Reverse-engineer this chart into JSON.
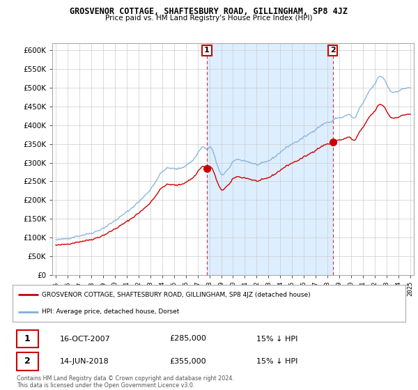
{
  "title": "GROSVENOR COTTAGE, SHAFTESBURY ROAD, GILLINGHAM, SP8 4JZ",
  "subtitle": "Price paid vs. HM Land Registry's House Price Index (HPI)",
  "ytick_values": [
    0,
    50000,
    100000,
    150000,
    200000,
    250000,
    300000,
    350000,
    400000,
    450000,
    500000,
    550000,
    600000
  ],
  "hpi_color": "#7fb0d8",
  "sold_color": "#cc0000",
  "shade_color": "#ddeeff",
  "marker1_date": 2007.79,
  "marker1_price": 285000,
  "marker2_date": 2018.45,
  "marker2_price": 355000,
  "legend_sold": "GROSVENOR COTTAGE, SHAFTESBURY ROAD, GILLINGHAM, SP8 4JZ (detached house)",
  "legend_hpi": "HPI: Average price, detached house, Dorset",
  "table": [
    {
      "num": "1",
      "date": "16-OCT-2007",
      "price": "£285,000",
      "hpi": "15% ↓ HPI"
    },
    {
      "num": "2",
      "date": "14-JUN-2018",
      "price": "£355,000",
      "hpi": "15% ↓ HPI"
    }
  ],
  "footnote": "Contains HM Land Registry data © Crown copyright and database right 2024.\nThis data is licensed under the Open Government Licence v3.0.",
  "bg_color": "#ffffff",
  "grid_color": "#cccccc"
}
